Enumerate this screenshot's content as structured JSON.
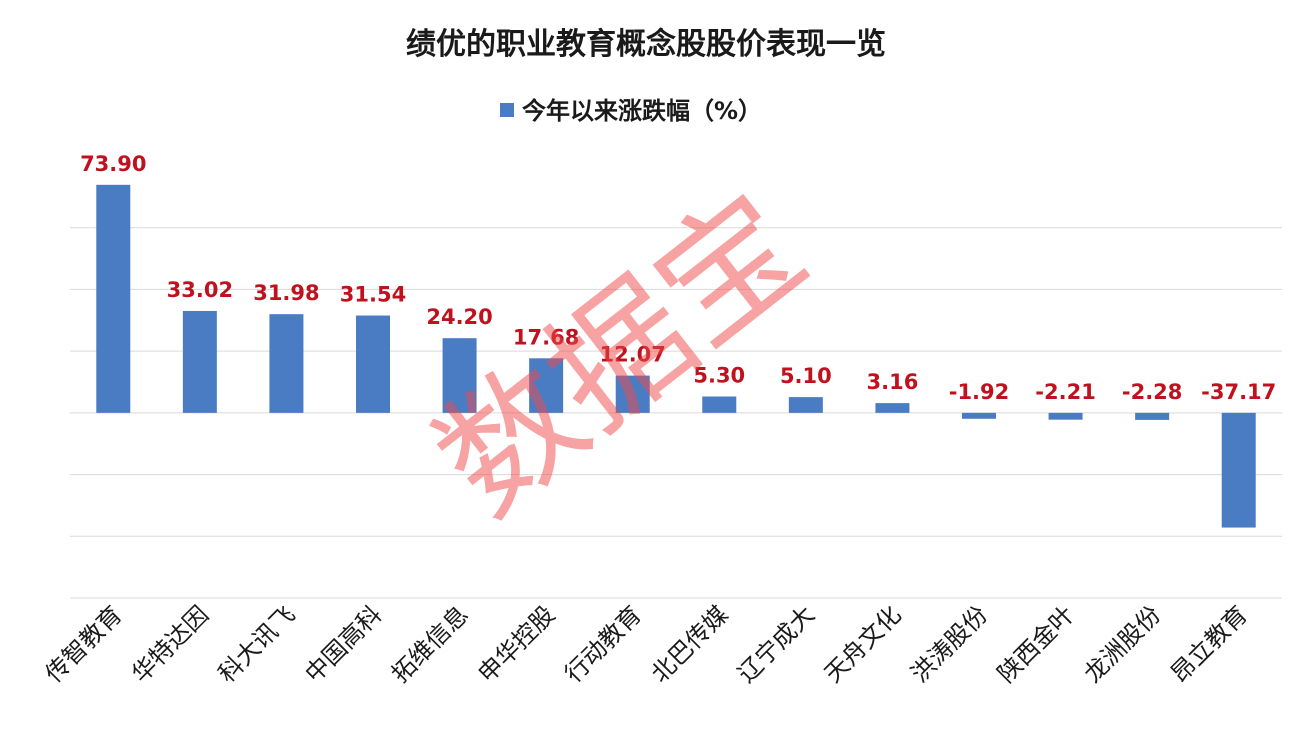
{
  "chart_data": {
    "type": "bar",
    "title": "绩优的职业教育概念股股价表现一览",
    "categories": [
      "传智教育",
      "华特达因",
      "科大讯飞",
      "中国高科",
      "拓维信息",
      "申华控股",
      "行动教育",
      "北巴传媒",
      "辽宁成大",
      "天舟文化",
      "洪涛股份",
      "陕西金叶",
      "龙洲股份",
      "昂立教育"
    ],
    "series": [
      {
        "name": "今年以来涨跌幅（%）",
        "values": [
          73.9,
          33.02,
          31.98,
          31.54,
          24.2,
          17.68,
          12.07,
          5.3,
          5.1,
          3.16,
          -1.92,
          -2.21,
          -2.28,
          -37.17
        ],
        "labels": [
          "73.90",
          "33.02",
          "31.98",
          "31.54",
          "24.20",
          "17.68",
          "12.07",
          "5.30",
          "5.10",
          "3.16",
          "-1.92",
          "-2.21",
          "-2.28",
          "-37.17"
        ],
        "color": "#4a7cc4"
      }
    ],
    "ylim": [
      -60,
      80
    ],
    "grid": true,
    "legend": "top-center",
    "label_color": "#c0121e",
    "watermark": "数据宝"
  }
}
